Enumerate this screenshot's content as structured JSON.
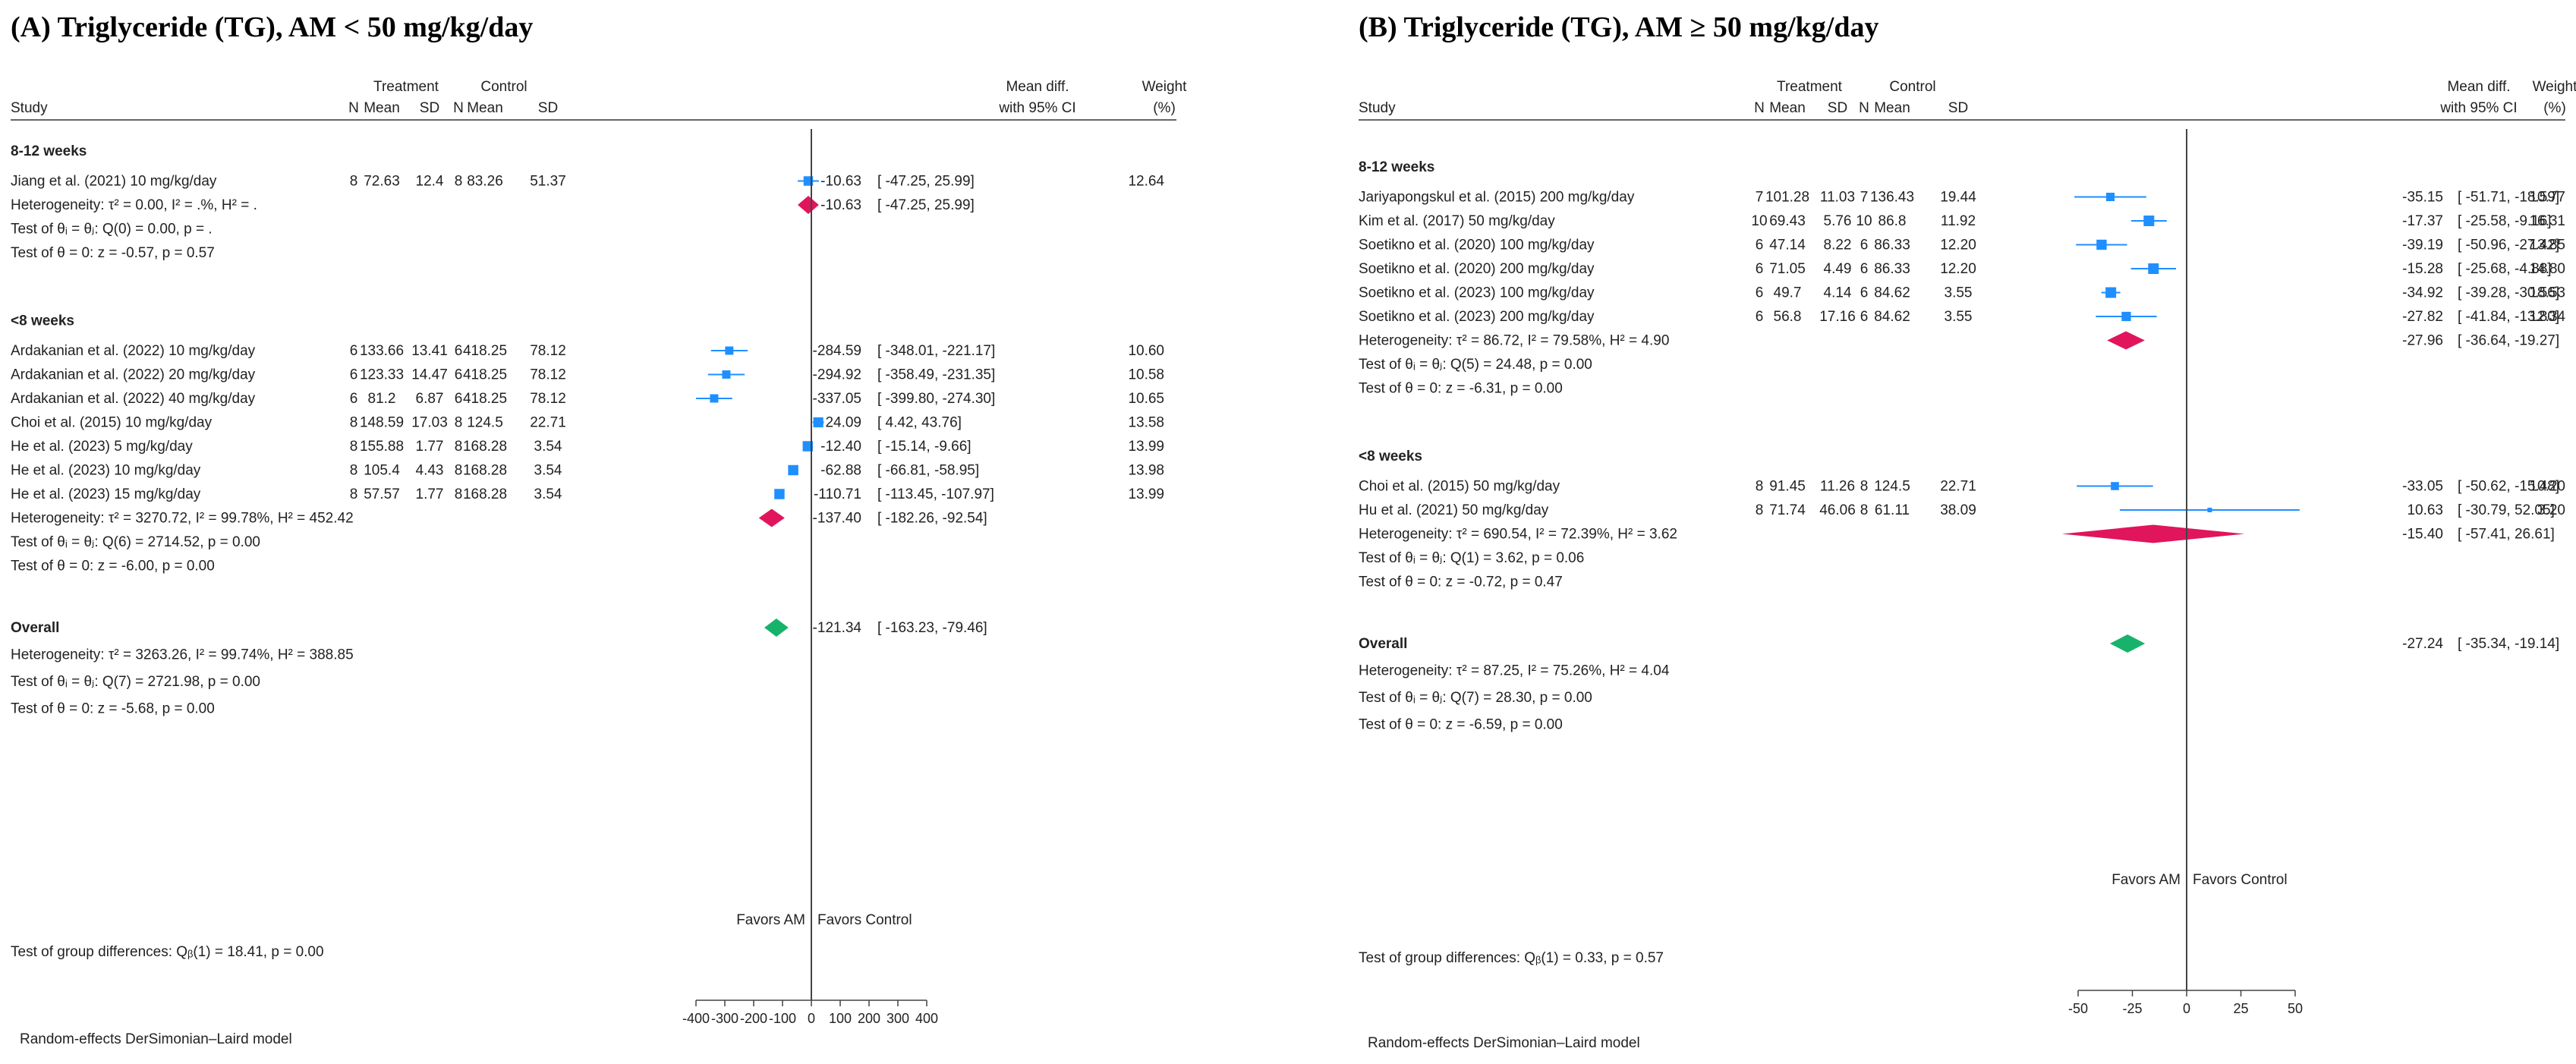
{
  "colors": {
    "study_marker": "#1f8fff",
    "subgroup_diamond": "#e0155c",
    "overall_diamond": "#18b36a",
    "axis": "#444444",
    "line": "#1f8fff"
  },
  "chart_data": [
    {
      "type": "forest",
      "title": "(A) Triglyceride (TG), AM < 50 mg/kg/day",
      "columns": {
        "study": "Study",
        "treatment_group": "Treatment",
        "control_group": "Control",
        "n": "N",
        "mean": "Mean",
        "sd": "SD",
        "effect_line1": "Mean diff.",
        "effect_line2": "with 95% CI",
        "weight_line1": "Weight",
        "weight_line2": "(%)"
      },
      "xlim": [
        -400,
        400
      ],
      "ticks": [
        -400,
        -300,
        -200,
        -100,
        0,
        100,
        200,
        300,
        400
      ],
      "tick_labels": [
        "-400",
        "-300",
        "-200",
        "-100",
        "0",
        "100",
        "200",
        "300",
        "400"
      ],
      "favors_left": "Favors AM",
      "favors_right": "Favors Control",
      "model_note": "Random-effects DerSimonian–Laird model",
      "groups": [
        {
          "label": "8-12 weeks",
          "studies": [
            {
              "name": "Jiang et al. (2021) 10 mg/kg/day",
              "n_t": "8",
              "mean_t": "72.63",
              "sd_t": "12.4",
              "n_c": "8",
              "mean_c": "83.26",
              "sd_c": "51.37",
              "est": -10.63,
              "lo": -47.25,
              "hi": 25.99,
              "est_txt": "-10.63",
              "ci_txt": "[  -47.25,     25.99]",
              "weight": "12.64"
            }
          ],
          "summary": {
            "est": -10.63,
            "lo": -47.25,
            "hi": 25.99,
            "est_txt": "-10.63",
            "ci_txt": "[  -47.25,     25.99]"
          },
          "het": "Heterogeneity: τ² = 0.00, I² = .%, H² = .",
          "homog": "Test of θᵢ = θⱼ: Q(0) = 0.00, p = .",
          "theta": "Test of θ = 0: z = -0.57, p = 0.57"
        },
        {
          "label": "<8 weeks",
          "studies": [
            {
              "name": "Ardakanian et al. (2022) 10 mg/kg/day",
              "n_t": "6",
              "mean_t": "133.66",
              "sd_t": "13.41",
              "n_c": "6",
              "mean_c": "418.25",
              "sd_c": "78.12",
              "est": -284.59,
              "lo": -348.01,
              "hi": -221.17,
              "est_txt": "-284.59",
              "ci_txt": "[ -348.01,  -221.17]",
              "weight": "10.60"
            },
            {
              "name": "Ardakanian et al. (2022) 20 mg/kg/day",
              "n_t": "6",
              "mean_t": "123.33",
              "sd_t": "14.47",
              "n_c": "6",
              "mean_c": "418.25",
              "sd_c": "78.12",
              "est": -294.92,
              "lo": -358.49,
              "hi": -231.35,
              "est_txt": "-294.92",
              "ci_txt": "[ -358.49,  -231.35]",
              "weight": "10.58"
            },
            {
              "name": "Ardakanian et al. (2022) 40 mg/kg/day",
              "n_t": "6",
              "mean_t": "81.2",
              "sd_t": "6.87",
              "n_c": "6",
              "mean_c": "418.25",
              "sd_c": "78.12",
              "est": -337.05,
              "lo": -399.8,
              "hi": -274.3,
              "est_txt": "-337.05",
              "ci_txt": "[ -399.80,  -274.30]",
              "weight": "10.65"
            },
            {
              "name": "Choi et al. (2015) 10 mg/kg/day",
              "n_t": "8",
              "mean_t": "148.59",
              "sd_t": "17.03",
              "n_c": "8",
              "mean_c": "124.5",
              "sd_c": "22.71",
              "est": 24.09,
              "lo": 4.42,
              "hi": 43.76,
              "est_txt": "24.09",
              "ci_txt": "[     4.42,     43.76]",
              "weight": "13.58"
            },
            {
              "name": "He et al. (2023) 5 mg/kg/day",
              "n_t": "8",
              "mean_t": "155.88",
              "sd_t": "1.77",
              "n_c": "8",
              "mean_c": "168.28",
              "sd_c": "3.54",
              "est": -12.4,
              "lo": -15.14,
              "hi": -9.66,
              "est_txt": "-12.40",
              "ci_txt": "[   -15.14,     -9.66]",
              "weight": "13.99"
            },
            {
              "name": "He et al. (2023) 10 mg/kg/day",
              "n_t": "8",
              "mean_t": "105.4",
              "sd_t": "4.43",
              "n_c": "8",
              "mean_c": "168.28",
              "sd_c": "3.54",
              "est": -62.88,
              "lo": -66.81,
              "hi": -58.95,
              "est_txt": "-62.88",
              "ci_txt": "[   -66.81,    -58.95]",
              "weight": "13.98"
            },
            {
              "name": "He et al. (2023) 15 mg/kg/day",
              "n_t": "8",
              "mean_t": "57.57",
              "sd_t": "1.77",
              "n_c": "8",
              "mean_c": "168.28",
              "sd_c": "3.54",
              "est": -110.71,
              "lo": -113.45,
              "hi": -107.97,
              "est_txt": "-110.71",
              "ci_txt": "[ -113.45,  -107.97]",
              "weight": "13.99"
            }
          ],
          "summary": {
            "est": -137.4,
            "lo": -182.26,
            "hi": -92.54,
            "est_txt": "-137.40",
            "ci_txt": "[ -182.26,    -92.54]"
          },
          "het": "Heterogeneity: τ² = 3270.72, I² = 99.78%, H² = 452.42",
          "homog": "Test of θᵢ = θⱼ: Q(6) = 2714.52, p = 0.00",
          "theta": "Test of θ = 0: z = -6.00, p = 0.00"
        }
      ],
      "overall": {
        "label": "Overall",
        "est": -121.34,
        "lo": -163.23,
        "hi": -79.46,
        "est_txt": "-121.34",
        "ci_txt": "[ -163.23,    -79.46]",
        "het": "Heterogeneity: τ² = 3263.26, I² = 99.74%, H² = 388.85",
        "homog": "Test of θᵢ = θⱼ: Q(7) = 2721.98, p = 0.00",
        "theta": "Test of θ = 0: z = -5.68, p = 0.00"
      },
      "group_diff": "Test of group differences: Qᵦ(1) = 18.41, p = 0.00"
    },
    {
      "type": "forest",
      "title": "(B) Triglyceride (TG), AM ≥ 50 mg/kg/day",
      "columns": {
        "study": "Study",
        "treatment_group": "Treatment",
        "control_group": "Control",
        "n": "N",
        "mean": "Mean",
        "sd": "SD",
        "effect_line1": "Mean diff.",
        "effect_line2": "with 95% CI",
        "weight_line1": "Weight",
        "weight_line2": "(%)"
      },
      "xlim": [
        -50,
        50
      ],
      "ticks": [
        -50,
        -25,
        0,
        25,
        50
      ],
      "tick_labels": [
        "-50",
        "-25",
        "0",
        "25",
        "50"
      ],
      "favors_left": "Favors AM",
      "favors_right": "Favors Control",
      "model_note": "Random-effects DerSimonian–Laird model",
      "groups": [
        {
          "label": "8-12 weeks",
          "studies": [
            {
              "name": "Jariyapongskul et al. (2015) 200 mg/kg/day",
              "n_t": "7",
              "mean_t": "101.28",
              "sd_t": "11.03",
              "n_c": "7",
              "mean_c": "136.43",
              "sd_c": "19.44",
              "est": -35.15,
              "lo": -51.71,
              "hi": -18.59,
              "est_txt": "-35.15",
              "ci_txt": "[ -51.71,  -18.59]",
              "weight": "10.77"
            },
            {
              "name": "Kim et al. (2017) 50 mg/kg/day",
              "n_t": "10",
              "mean_t": "69.43",
              "sd_t": "5.76",
              "n_c": "10",
              "mean_c": "86.8",
              "sd_c": "11.92",
              "est": -17.37,
              "lo": -25.58,
              "hi": -9.16,
              "est_txt": "-17.37",
              "ci_txt": "[ -25.58,   -9.16]",
              "weight": "16.31"
            },
            {
              "name": "Soetikno et al. (2020) 100 mg/kg/day",
              "n_t": "6",
              "mean_t": "47.14",
              "sd_t": "8.22",
              "n_c": "6",
              "mean_c": "86.33",
              "sd_c": "12.20",
              "est": -39.19,
              "lo": -50.96,
              "hi": -27.42,
              "est_txt": "-39.19",
              "ci_txt": "[ -50.96,  -27.42]",
              "weight": "13.85"
            },
            {
              "name": "Soetikno et al. (2020) 200 mg/kg/day",
              "n_t": "6",
              "mean_t": "71.05",
              "sd_t": "4.49",
              "n_c": "6",
              "mean_c": "86.33",
              "sd_c": "12.20",
              "est": -15.28,
              "lo": -25.68,
              "hi": -4.88,
              "est_txt": "-15.28",
              "ci_txt": "[ -25.68,   -4.88]",
              "weight": "14.80"
            },
            {
              "name": "Soetikno et al. (2023) 100 mg/kg/day",
              "n_t": "6",
              "mean_t": "49.7",
              "sd_t": "4.14",
              "n_c": "6",
              "mean_c": "84.62",
              "sd_c": "3.55",
              "est": -34.92,
              "lo": -39.28,
              "hi": -30.56,
              "est_txt": "-34.92",
              "ci_txt": "[ -39.28,  -30.56]",
              "weight": "18.53"
            },
            {
              "name": "Soetikno et al. (2023) 200 mg/kg/day",
              "n_t": "6",
              "mean_t": "56.8",
              "sd_t": "17.16",
              "n_c": "6",
              "mean_c": "84.62",
              "sd_c": "3.55",
              "est": -27.82,
              "lo": -41.84,
              "hi": -13.8,
              "est_txt": "-27.82",
              "ci_txt": "[ -41.84,  -13.80]",
              "weight": "12.34"
            }
          ],
          "summary": {
            "est": -27.96,
            "lo": -36.64,
            "hi": -19.27,
            "est_txt": "-27.96",
            "ci_txt": "[ -36.64,  -19.27]"
          },
          "het": "Heterogeneity: τ² = 86.72, I² = 79.58%, H² = 4.90",
          "homog": "Test of θᵢ = θⱼ: Q(5) = 24.48, p = 0.00",
          "theta": "Test of θ = 0: z = -6.31, p = 0.00"
        },
        {
          "label": "<8 weeks",
          "studies": [
            {
              "name": "Choi et al. (2015) 50 mg/kg/day",
              "n_t": "8",
              "mean_t": "91.45",
              "sd_t": "11.26",
              "n_c": "8",
              "mean_c": "124.5",
              "sd_c": "22.71",
              "est": -33.05,
              "lo": -50.62,
              "hi": -15.48,
              "est_txt": "-33.05",
              "ci_txt": "[ -50.62,  -15.48]",
              "weight": "10.20"
            },
            {
              "name": "Hu et al. (2021) 50 mg/kg/day",
              "n_t": "8",
              "mean_t": "71.74",
              "sd_t": "46.06",
              "n_c": "8",
              "mean_c": "61.11",
              "sd_c": "38.09",
              "est": 10.63,
              "lo": -30.79,
              "hi": 52.05,
              "est_txt": "10.63",
              "ci_txt": "[ -30.79,   52.05]",
              "weight": "3.20"
            }
          ],
          "summary": {
            "est": -15.4,
            "lo": -57.41,
            "hi": 26.61,
            "est_txt": "-15.40",
            "ci_txt": "[ -57.41,   26.61]"
          },
          "het": "Heterogeneity: τ² = 690.54, I² = 72.39%, H² = 3.62",
          "homog": "Test of θᵢ = θⱼ: Q(1) = 3.62, p = 0.06",
          "theta": "Test of θ = 0: z = -0.72, p = 0.47"
        }
      ],
      "overall": {
        "label": "Overall",
        "est": -27.24,
        "lo": -35.34,
        "hi": -19.14,
        "est_txt": "-27.24",
        "ci_txt": "[ -35.34,  -19.14]",
        "het": "Heterogeneity: τ² = 87.25, I² = 75.26%, H² = 4.04",
        "homog": "Test of θᵢ = θⱼ: Q(7) = 28.30, p = 0.00",
        "theta": "Test of θ = 0: z = -6.59, p = 0.00"
      },
      "group_diff": "Test of group differences: Qᵦ(1) = 0.33, p = 0.57"
    }
  ]
}
